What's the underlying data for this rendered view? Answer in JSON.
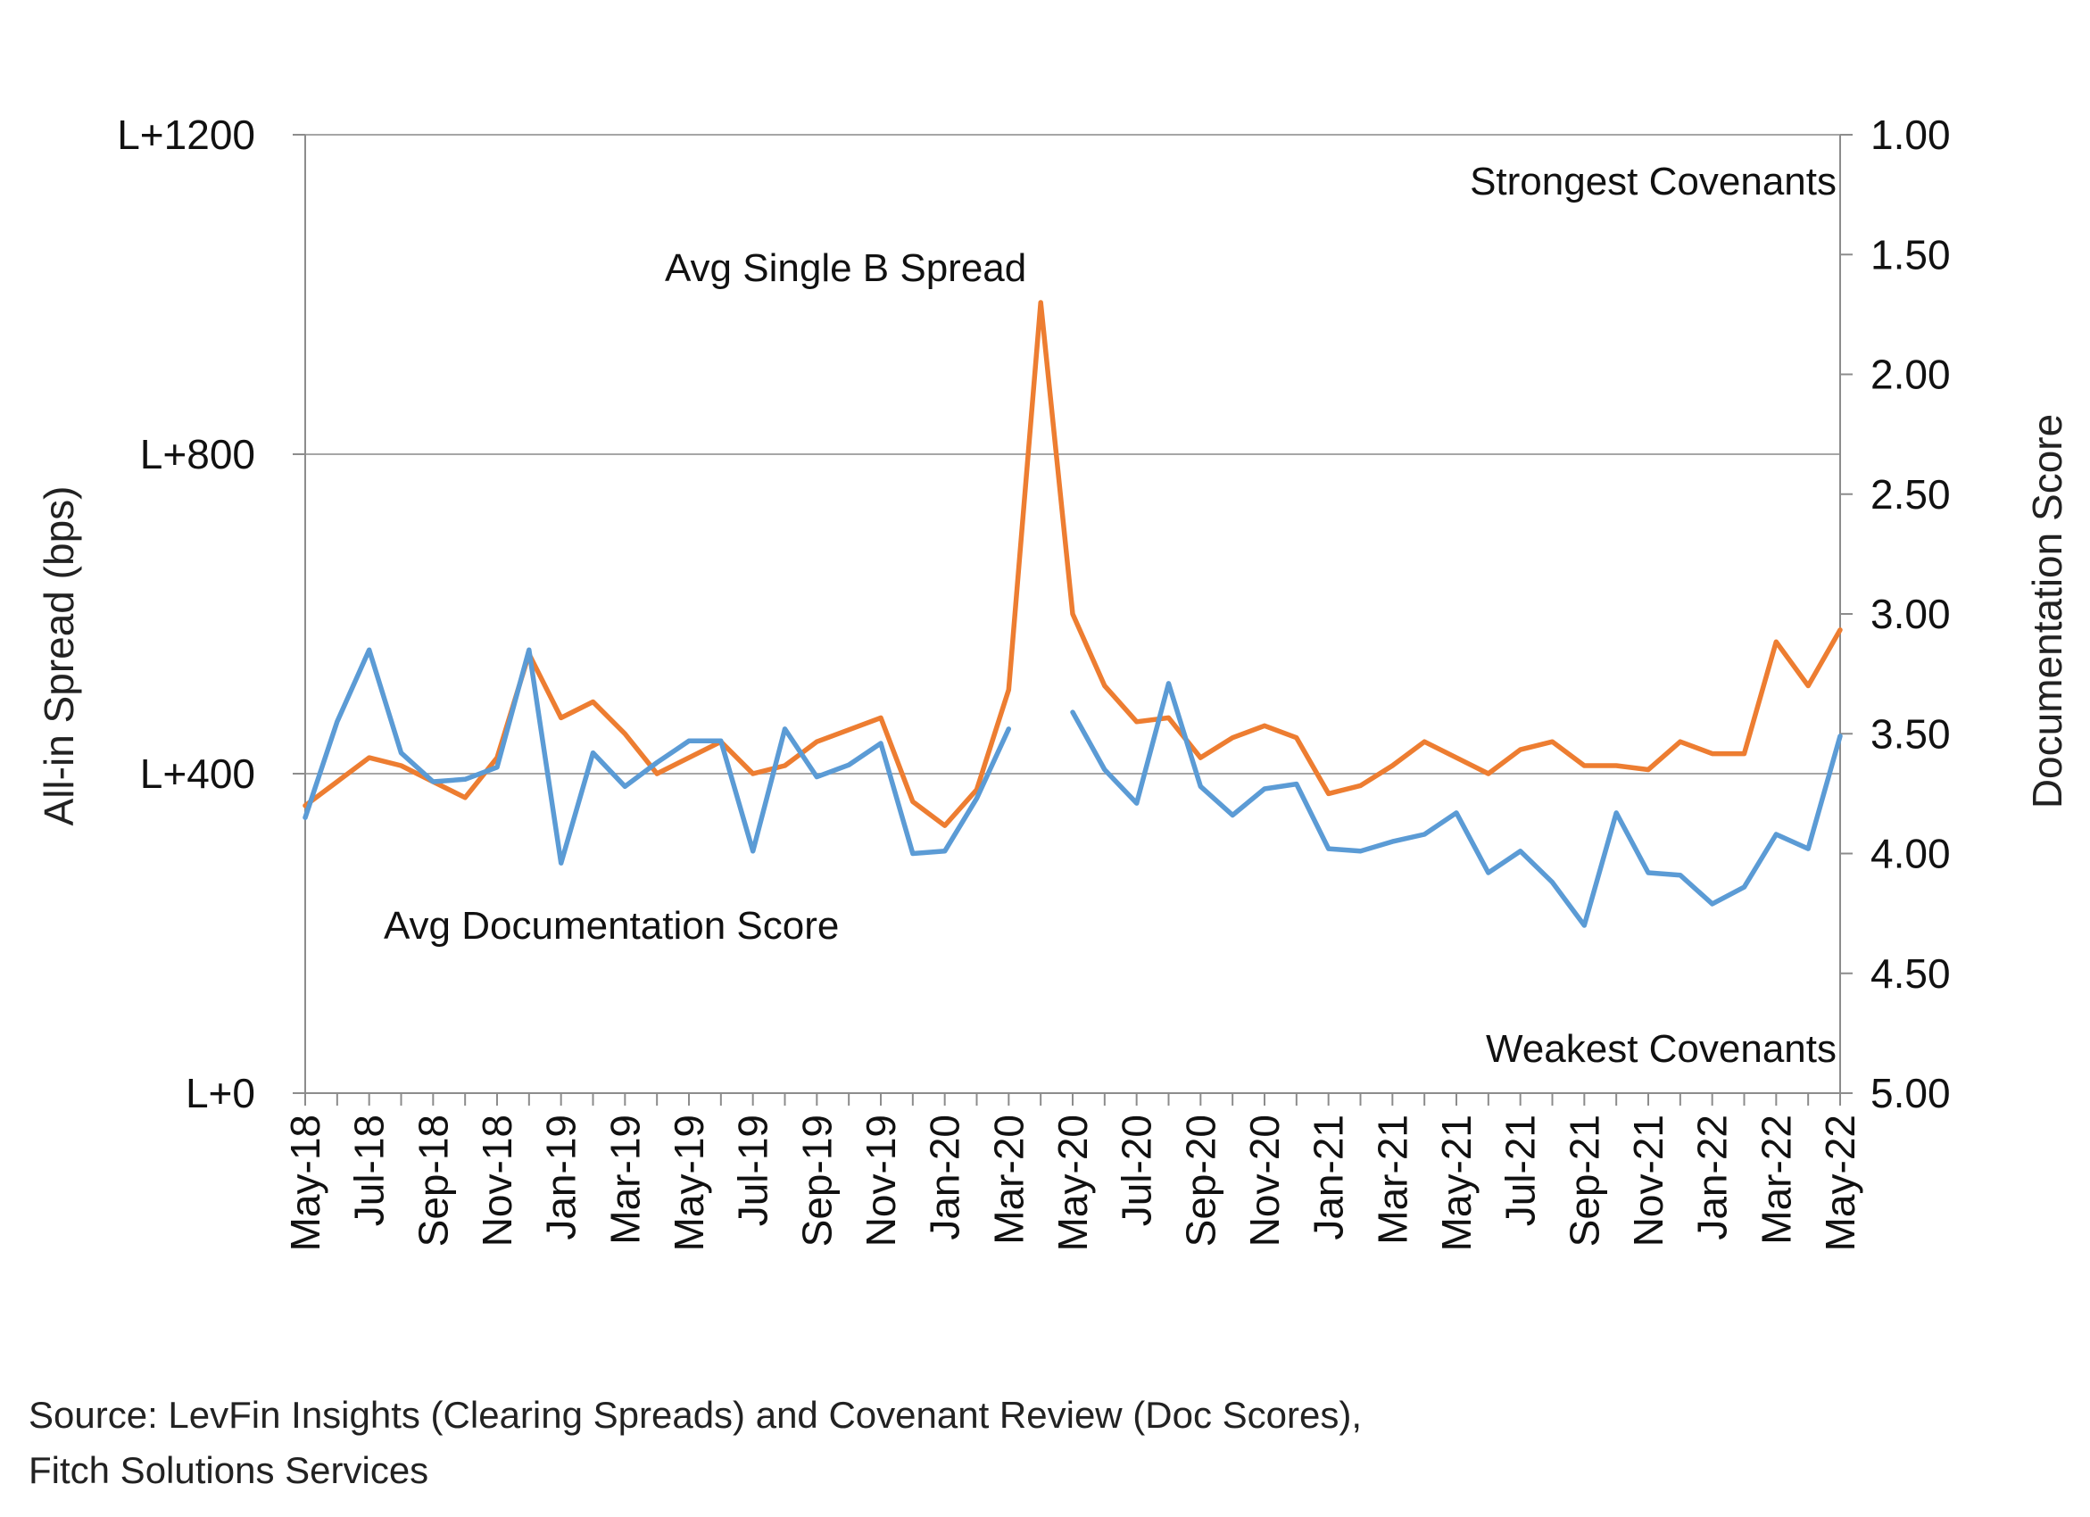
{
  "chart_data": {
    "type": "line",
    "x": [
      "May-18",
      "Jun-18",
      "Jul-18",
      "Aug-18",
      "Sep-18",
      "Oct-18",
      "Nov-18",
      "Dec-18",
      "Jan-19",
      "Feb-19",
      "Mar-19",
      "Apr-19",
      "May-19",
      "Jun-19",
      "Jul-19",
      "Aug-19",
      "Sep-19",
      "Oct-19",
      "Nov-19",
      "Dec-19",
      "Jan-20",
      "Feb-20",
      "Mar-20",
      "Apr-20",
      "May-20",
      "Jun-20",
      "Jul-20",
      "Aug-20",
      "Sep-20",
      "Oct-20",
      "Nov-20",
      "Dec-20",
      "Jan-21",
      "Feb-21",
      "Mar-21",
      "Apr-21",
      "May-21",
      "Jun-21",
      "Jul-21",
      "Aug-21",
      "Sep-21",
      "Oct-21",
      "Nov-21",
      "Dec-21",
      "Jan-22",
      "Feb-22",
      "Mar-22",
      "Apr-22",
      "May-22"
    ],
    "x_tick_labels": [
      "May-18",
      "Jul-18",
      "Sep-18",
      "Nov-18",
      "Jan-19",
      "Mar-19",
      "May-19",
      "Jul-19",
      "Sep-19",
      "Nov-19",
      "Jan-20",
      "Mar-20",
      "May-20",
      "Jul-20",
      "Sep-20",
      "Nov-20",
      "Jan-21",
      "Mar-21",
      "May-21",
      "Jul-21",
      "Sep-21",
      "Nov-21",
      "Jan-22",
      "Mar-22",
      "May-22"
    ],
    "y_left": {
      "label": "All-in Spread (bps)",
      "range": [
        0,
        1200
      ],
      "ticks": [
        0,
        400,
        800,
        1200
      ],
      "tick_labels": [
        "L+0",
        "L+400",
        "L+800",
        "L+1200"
      ]
    },
    "y_right": {
      "label": "Documentation Score",
      "range": [
        1.0,
        5.0
      ],
      "inverted": true,
      "ticks": [
        1.0,
        1.5,
        2.0,
        2.5,
        3.0,
        3.5,
        4.0,
        4.5,
        5.0
      ],
      "tick_labels": [
        "1.00",
        "1.50",
        "2.00",
        "2.50",
        "3.00",
        "3.50",
        "4.00",
        "4.50",
        "5.00"
      ]
    },
    "grid": "horizontal-major",
    "series": [
      {
        "name": "Avg Single B Spread",
        "axis": "left",
        "color": "#ED7D31",
        "values": [
          360,
          390,
          420,
          410,
          390,
          370,
          420,
          550,
          470,
          490,
          450,
          400,
          420,
          440,
          400,
          410,
          440,
          455,
          470,
          365,
          335,
          380,
          505,
          990,
          600,
          510,
          465,
          470,
          420,
          445,
          460,
          445,
          375,
          385,
          410,
          440,
          420,
          400,
          430,
          440,
          410,
          410,
          405,
          440,
          425,
          425,
          565,
          510,
          580
        ]
      },
      {
        "name": "Avg Documentation Score",
        "axis": "right",
        "color": "#5B9BD5",
        "values": [
          3.85,
          3.45,
          3.15,
          3.58,
          3.7,
          3.69,
          3.64,
          3.15,
          4.04,
          3.58,
          3.72,
          3.62,
          3.53,
          3.53,
          3.99,
          3.48,
          3.68,
          3.63,
          3.54,
          4.0,
          3.99,
          3.77,
          3.48,
          null,
          3.41,
          3.65,
          3.79,
          3.29,
          3.72,
          3.84,
          3.73,
          3.71,
          3.98,
          3.99,
          3.95,
          3.92,
          3.83,
          4.08,
          3.99,
          4.12,
          4.3,
          3.83,
          4.08,
          4.09,
          4.21,
          4.14,
          3.92,
          3.98,
          3.51
        ]
      }
    ],
    "annotations": {
      "spread_label": "Avg Single B Spread",
      "doc_label": "Avg Documentation Score",
      "strongest": "Strongest Covenants",
      "weakest": "Weakest Covenants"
    }
  },
  "source": {
    "line1": "Source: LevFin Insights (Clearing Spreads) and Covenant Review (Doc Scores),",
    "line2": "Fitch Solutions Services"
  }
}
